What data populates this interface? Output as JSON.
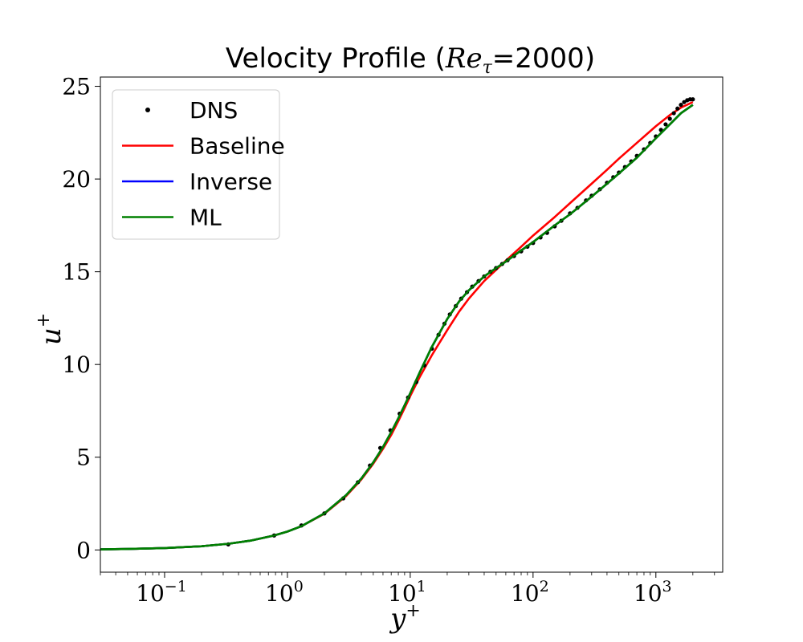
{
  "chart_data": {
    "type": "line",
    "title_prefix": "Velocity Profile (",
    "title_math": "Re",
    "title_sub": "τ",
    "title_suffix": "=2000)",
    "xlabel": "y",
    "xlabel_sup": "+",
    "ylabel": "u",
    "ylabel_sup": "+",
    "xscale": "log",
    "xlim": [
      0.03,
      3500
    ],
    "ylim": [
      -1.2,
      25.5
    ],
    "x_ticks": [
      {
        "value": 0.1,
        "base": "10",
        "exp": "−1"
      },
      {
        "value": 1,
        "base": "10",
        "exp": "0"
      },
      {
        "value": 10,
        "base": "10",
        "exp": "1"
      },
      {
        "value": 100,
        "base": "10",
        "exp": "2"
      },
      {
        "value": 1000,
        "base": "10",
        "exp": "3"
      }
    ],
    "y_ticks": [
      {
        "value": 0,
        "label": "0"
      },
      {
        "value": 5,
        "label": "5"
      },
      {
        "value": 10,
        "label": "10"
      },
      {
        "value": 15,
        "label": "15"
      },
      {
        "value": 20,
        "label": "20"
      },
      {
        "value": 25,
        "label": "25"
      }
    ],
    "grid": false,
    "legend_position": "top-left",
    "series": [
      {
        "name": "DNS",
        "kind": "points",
        "color": "#000000",
        "x": [
          0.33,
          0.78,
          1.3,
          2.0,
          2.85,
          3.75,
          4.7,
          5.7,
          6.9,
          8.2,
          9.6,
          11.2,
          13.0,
          15.0,
          17.0,
          19.0,
          21.0,
          23.5,
          26,
          29,
          32,
          36,
          40,
          45,
          50,
          56,
          62,
          70,
          80,
          90,
          100,
          115,
          130,
          150,
          170,
          200,
          230,
          270,
          300,
          350,
          400,
          450,
          500,
          560,
          630,
          700,
          800,
          900,
          1000,
          1100,
          1200,
          1300,
          1400,
          1500,
          1600,
          1700,
          1800,
          1900,
          2000
        ],
        "y": [
          0.3,
          0.78,
          1.32,
          1.97,
          2.78,
          3.65,
          4.55,
          5.5,
          6.45,
          7.35,
          8.22,
          9.05,
          9.95,
          10.85,
          11.6,
          12.2,
          12.7,
          13.15,
          13.55,
          13.9,
          14.2,
          14.5,
          14.75,
          15.0,
          15.2,
          15.42,
          15.62,
          15.85,
          16.1,
          16.35,
          16.55,
          16.85,
          17.1,
          17.45,
          17.75,
          18.15,
          18.45,
          18.85,
          19.1,
          19.45,
          19.8,
          20.1,
          20.35,
          20.65,
          20.95,
          21.25,
          21.6,
          21.95,
          22.3,
          22.65,
          22.95,
          23.25,
          23.55,
          23.8,
          24.0,
          24.15,
          24.25,
          24.3,
          24.3
        ]
      },
      {
        "name": "Baseline",
        "kind": "line",
        "color": "#ff0000",
        "x": [
          0.03,
          0.05,
          0.1,
          0.2,
          0.33,
          0.5,
          0.78,
          1.0,
          1.3,
          2.0,
          3.0,
          4.0,
          5.0,
          6.0,
          7.0,
          8.0,
          9.0,
          10.0,
          12.0,
          15.0,
          20.0,
          25.0,
          30.0,
          40.0,
          50.0,
          60.0,
          80.0,
          100,
          150,
          200,
          300,
          400,
          500,
          700,
          1000,
          1300,
          1600,
          2000
        ],
        "y": [
          0.03,
          0.05,
          0.1,
          0.2,
          0.33,
          0.5,
          0.78,
          0.99,
          1.28,
          1.95,
          2.9,
          3.8,
          4.65,
          5.45,
          6.2,
          6.95,
          7.65,
          8.3,
          9.35,
          10.5,
          11.85,
          12.85,
          13.55,
          14.5,
          15.1,
          15.6,
          16.35,
          16.95,
          17.95,
          18.7,
          19.75,
          20.5,
          21.1,
          21.95,
          22.85,
          23.45,
          23.85,
          24.15
        ]
      },
      {
        "name": "Inverse",
        "kind": "line",
        "color": "#0000ff",
        "x": [
          0.03,
          0.05,
          0.1,
          0.2,
          0.33,
          0.5,
          0.78,
          1.0,
          1.3,
          2.0,
          3.0,
          4.0,
          5.0,
          6.0,
          7.0,
          8.0,
          9.0,
          10.0,
          12.0,
          15.0,
          20.0,
          25.0,
          30.0,
          40.0,
          50.0,
          60.0,
          80.0,
          100,
          150,
          200,
          300,
          400,
          500,
          700,
          1000,
          1300,
          1600,
          2000
        ],
        "y": [
          0.03,
          0.05,
          0.1,
          0.2,
          0.33,
          0.5,
          0.78,
          0.99,
          1.28,
          1.97,
          2.95,
          3.85,
          4.72,
          5.55,
          6.35,
          7.1,
          7.8,
          8.45,
          9.6,
          10.95,
          12.45,
          13.4,
          14.0,
          14.75,
          15.2,
          15.55,
          16.15,
          16.6,
          17.5,
          18.1,
          19.05,
          19.75,
          20.3,
          21.15,
          22.2,
          22.95,
          23.55,
          24.0
        ]
      },
      {
        "name": "ML",
        "kind": "line",
        "color": "#008000",
        "x": [
          0.03,
          0.05,
          0.1,
          0.2,
          0.33,
          0.5,
          0.78,
          1.0,
          1.3,
          2.0,
          3.0,
          4.0,
          5.0,
          6.0,
          7.0,
          8.0,
          9.0,
          10.0,
          12.0,
          15.0,
          20.0,
          25.0,
          30.0,
          40.0,
          50.0,
          60.0,
          80.0,
          100,
          150,
          200,
          300,
          400,
          500,
          700,
          1000,
          1300,
          1600,
          2000
        ],
        "y": [
          0.03,
          0.05,
          0.1,
          0.2,
          0.33,
          0.5,
          0.78,
          0.99,
          1.28,
          1.97,
          2.95,
          3.85,
          4.72,
          5.55,
          6.35,
          7.1,
          7.8,
          8.45,
          9.6,
          10.95,
          12.45,
          13.4,
          14.0,
          14.75,
          15.2,
          15.55,
          16.15,
          16.6,
          17.5,
          18.1,
          19.05,
          19.75,
          20.3,
          21.15,
          22.2,
          22.95,
          23.55,
          24.0
        ]
      }
    ]
  }
}
